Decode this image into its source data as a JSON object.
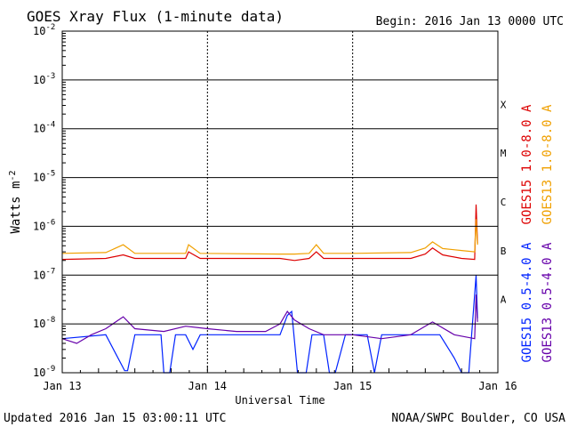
{
  "chart_data": {
    "type": "line",
    "title": "GOES Xray Flux (1-minute data)",
    "begin_label": "Begin:  2016 Jan 13 0000 UTC",
    "ylabel": "Watts m",
    "ylabel_exp": "-2",
    "xlabel": "Universal Time",
    "y_scale": "log",
    "ylim": [
      1e-09,
      0.01
    ],
    "y_ticks": [
      {
        "mant": "10",
        "exp": "-2",
        "value": 0.01
      },
      {
        "mant": "10",
        "exp": "-3",
        "value": 0.001
      },
      {
        "mant": "10",
        "exp": "-4",
        "value": 0.0001
      },
      {
        "mant": "10",
        "exp": "-5",
        "value": 1e-05
      },
      {
        "mant": "10",
        "exp": "-6",
        "value": 1e-06
      },
      {
        "mant": "10",
        "exp": "-7",
        "value": 1e-07
      },
      {
        "mant": "10",
        "exp": "-8",
        "value": 1e-08
      },
      {
        "mant": "10",
        "exp": "-9",
        "value": 1e-09
      }
    ],
    "x_ticks": [
      "Jan 13",
      "Jan 14",
      "Jan 15",
      "Jan 16"
    ],
    "x_range_days": [
      0,
      3
    ],
    "flare_classes": [
      {
        "label": "X",
        "value": 0.000316
      },
      {
        "label": "M",
        "value": 3.16e-05
      },
      {
        "label": "C",
        "value": 3.16e-06
      },
      {
        "label": "B",
        "value": 3.16e-07
      },
      {
        "label": "A",
        "value": 3.16e-08
      }
    ],
    "grid": true,
    "legend_position": "right",
    "series": [
      {
        "name": "GOES15 1.0-8.0 A",
        "color": "#dd0000",
        "points": [
          [
            0,
            2.1e-07
          ],
          [
            0.3,
            2.2e-07
          ],
          [
            0.42,
            2.6e-07
          ],
          [
            0.5,
            2.2e-07
          ],
          [
            0.85,
            2.2e-07
          ],
          [
            0.87,
            3e-07
          ],
          [
            0.95,
            2.2e-07
          ],
          [
            1.5,
            2.2e-07
          ],
          [
            1.6,
            2e-07
          ],
          [
            1.7,
            2.2e-07
          ],
          [
            1.75,
            3e-07
          ],
          [
            1.8,
            2.2e-07
          ],
          [
            2.0,
            2.2e-07
          ],
          [
            2.4,
            2.2e-07
          ],
          [
            2.5,
            2.7e-07
          ],
          [
            2.55,
            3.6e-07
          ],
          [
            2.62,
            2.6e-07
          ],
          [
            2.75,
            2.2e-07
          ],
          [
            2.84,
            2.1e-07
          ],
          [
            2.85,
            2.8e-06
          ],
          [
            2.86,
            4.5e-07
          ]
        ]
      },
      {
        "name": "GOES13 1.0-8.0 A",
        "color": "#f0a000",
        "points": [
          [
            0,
            2.8e-07
          ],
          [
            0.3,
            2.9e-07
          ],
          [
            0.42,
            4.2e-07
          ],
          [
            0.5,
            2.8e-07
          ],
          [
            0.85,
            2.8e-07
          ],
          [
            0.87,
            4.2e-07
          ],
          [
            0.95,
            2.8e-07
          ],
          [
            1.5,
            2.7e-07
          ],
          [
            1.6,
            2.7e-07
          ],
          [
            1.7,
            2.8e-07
          ],
          [
            1.75,
            4.2e-07
          ],
          [
            1.8,
            2.8e-07
          ],
          [
            2.0,
            2.8e-07
          ],
          [
            2.4,
            2.9e-07
          ],
          [
            2.5,
            3.6e-07
          ],
          [
            2.55,
            4.8e-07
          ],
          [
            2.62,
            3.5e-07
          ],
          [
            2.75,
            3.2e-07
          ],
          [
            2.84,
            3e-07
          ],
          [
            2.85,
            1.4e-06
          ],
          [
            2.86,
            4.2e-07
          ]
        ]
      },
      {
        "name": "GOES15 0.5-4.0 A",
        "color": "#0022ff",
        "points": [
          [
            0,
            5e-09
          ],
          [
            0.3,
            6e-09
          ],
          [
            0.43,
            1.1e-09
          ],
          [
            0.45,
            1.1e-09
          ],
          [
            0.5,
            6e-09
          ],
          [
            0.68,
            6e-09
          ],
          [
            0.7,
            1e-09
          ],
          [
            0.74,
            1e-09
          ],
          [
            0.78,
            6e-09
          ],
          [
            0.85,
            6e-09
          ],
          [
            0.9,
            3e-09
          ],
          [
            0.95,
            6e-09
          ],
          [
            1.5,
            6e-09
          ],
          [
            1.55,
            1.5e-08
          ],
          [
            1.58,
            1.8e-08
          ],
          [
            1.62,
            1e-09
          ],
          [
            1.68,
            1e-09
          ],
          [
            1.72,
            6e-09
          ],
          [
            1.8,
            6e-09
          ],
          [
            1.84,
            1e-09
          ],
          [
            1.88,
            1e-09
          ],
          [
            1.95,
            6e-09
          ],
          [
            2.1,
            6e-09
          ],
          [
            2.15,
            1e-09
          ],
          [
            2.2,
            6e-09
          ],
          [
            2.6,
            6e-09
          ],
          [
            2.7,
            2e-09
          ],
          [
            2.75,
            1e-09
          ],
          [
            2.8,
            1e-09
          ],
          [
            2.85,
            1e-07
          ],
          [
            2.86,
            1.3e-08
          ]
        ]
      },
      {
        "name": "GOES13 0.5-4.0 A",
        "color": "#6600aa",
        "points": [
          [
            0,
            5e-09
          ],
          [
            0.1,
            4e-09
          ],
          [
            0.2,
            6e-09
          ],
          [
            0.3,
            8e-09
          ],
          [
            0.42,
            1.4e-08
          ],
          [
            0.5,
            8e-09
          ],
          [
            0.7,
            7e-09
          ],
          [
            0.85,
            9e-09
          ],
          [
            1.0,
            8e-09
          ],
          [
            1.2,
            7e-09
          ],
          [
            1.4,
            7e-09
          ],
          [
            1.5,
            1e-08
          ],
          [
            1.55,
            1.8e-08
          ],
          [
            1.6,
            1.2e-08
          ],
          [
            1.7,
            8e-09
          ],
          [
            1.8,
            6e-09
          ],
          [
            2.0,
            6e-09
          ],
          [
            2.2,
            5e-09
          ],
          [
            2.4,
            6e-09
          ],
          [
            2.55,
            1.1e-08
          ],
          [
            2.7,
            6e-09
          ],
          [
            2.84,
            5e-09
          ],
          [
            2.85,
            4e-08
          ],
          [
            2.86,
            1.1e-08
          ]
        ]
      }
    ]
  },
  "footer": {
    "updated": "Updated 2016 Jan 15 03:00:11 UTC",
    "credit": "NOAA/SWPC Boulder, CO USA"
  }
}
